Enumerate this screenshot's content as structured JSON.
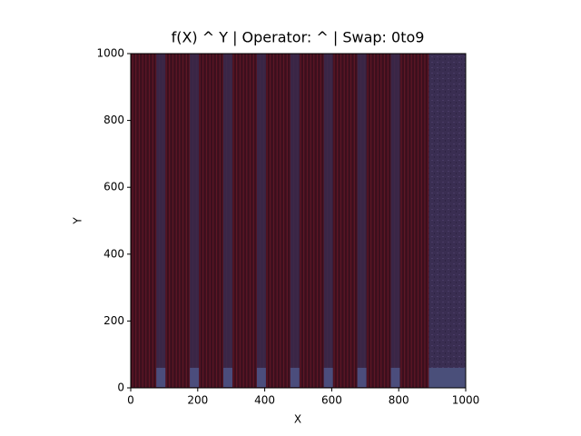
{
  "chart_data": {
    "type": "image",
    "title": "f(X) ^ Y | Operator: ^ | Swap: 0to9",
    "x_label": "X",
    "y_label": "Y",
    "xlim": [
      0,
      1000
    ],
    "ylim": [
      0,
      1000
    ],
    "xticks": [
      0,
      200,
      400,
      600,
      800,
      1000
    ],
    "yticks": [
      0,
      200,
      400,
      600,
      800,
      1000
    ]
  }
}
